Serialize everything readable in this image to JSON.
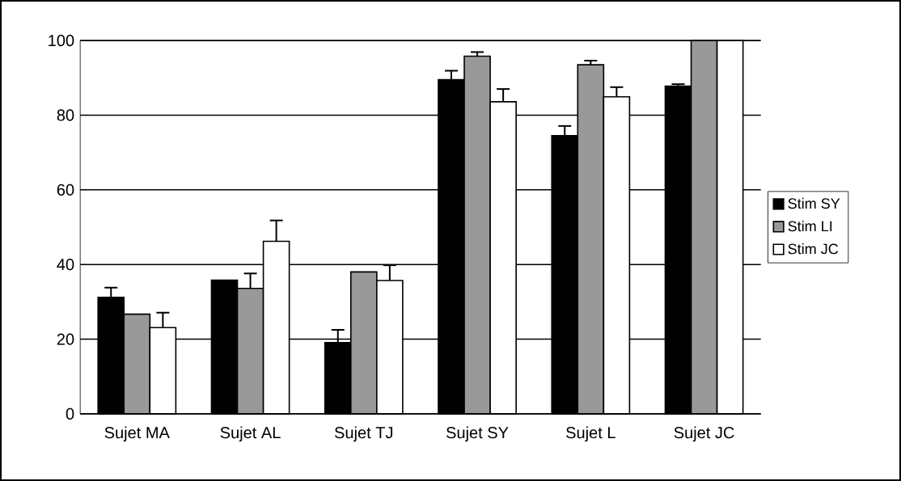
{
  "chart_data": {
    "type": "bar",
    "categories": [
      "Sujet MA",
      "Sujet AL",
      "Sujet TJ",
      "Sujet  SY",
      "Sujet L",
      "Sujet JC"
    ],
    "series": [
      {
        "name": "Stim SY",
        "color": "#000000",
        "values": [
          31.2,
          35.8,
          19.1,
          89.5,
          74.5,
          87.8
        ],
        "errors": [
          2.6,
          null,
          3.4,
          2.4,
          2.6,
          0.5
        ]
      },
      {
        "name": "Stim LI",
        "color": "#999999",
        "values": [
          26.7,
          33.6,
          38.0,
          95.8,
          93.5,
          100
        ],
        "errors": [
          null,
          4,
          null,
          1.1,
          1.1,
          null
        ]
      },
      {
        "name": "Stim JC",
        "color": "#ffffff",
        "values": [
          23.1,
          46.2,
          35.7,
          83.6,
          84.9,
          100
        ],
        "errors": [
          4,
          5.6,
          4.1,
          3.4,
          2.6,
          null
        ]
      }
    ],
    "ylim": [
      0,
      100
    ],
    "yticks": [
      0,
      20,
      40,
      60,
      80,
      100
    ],
    "grid": "y",
    "legend": "right"
  }
}
